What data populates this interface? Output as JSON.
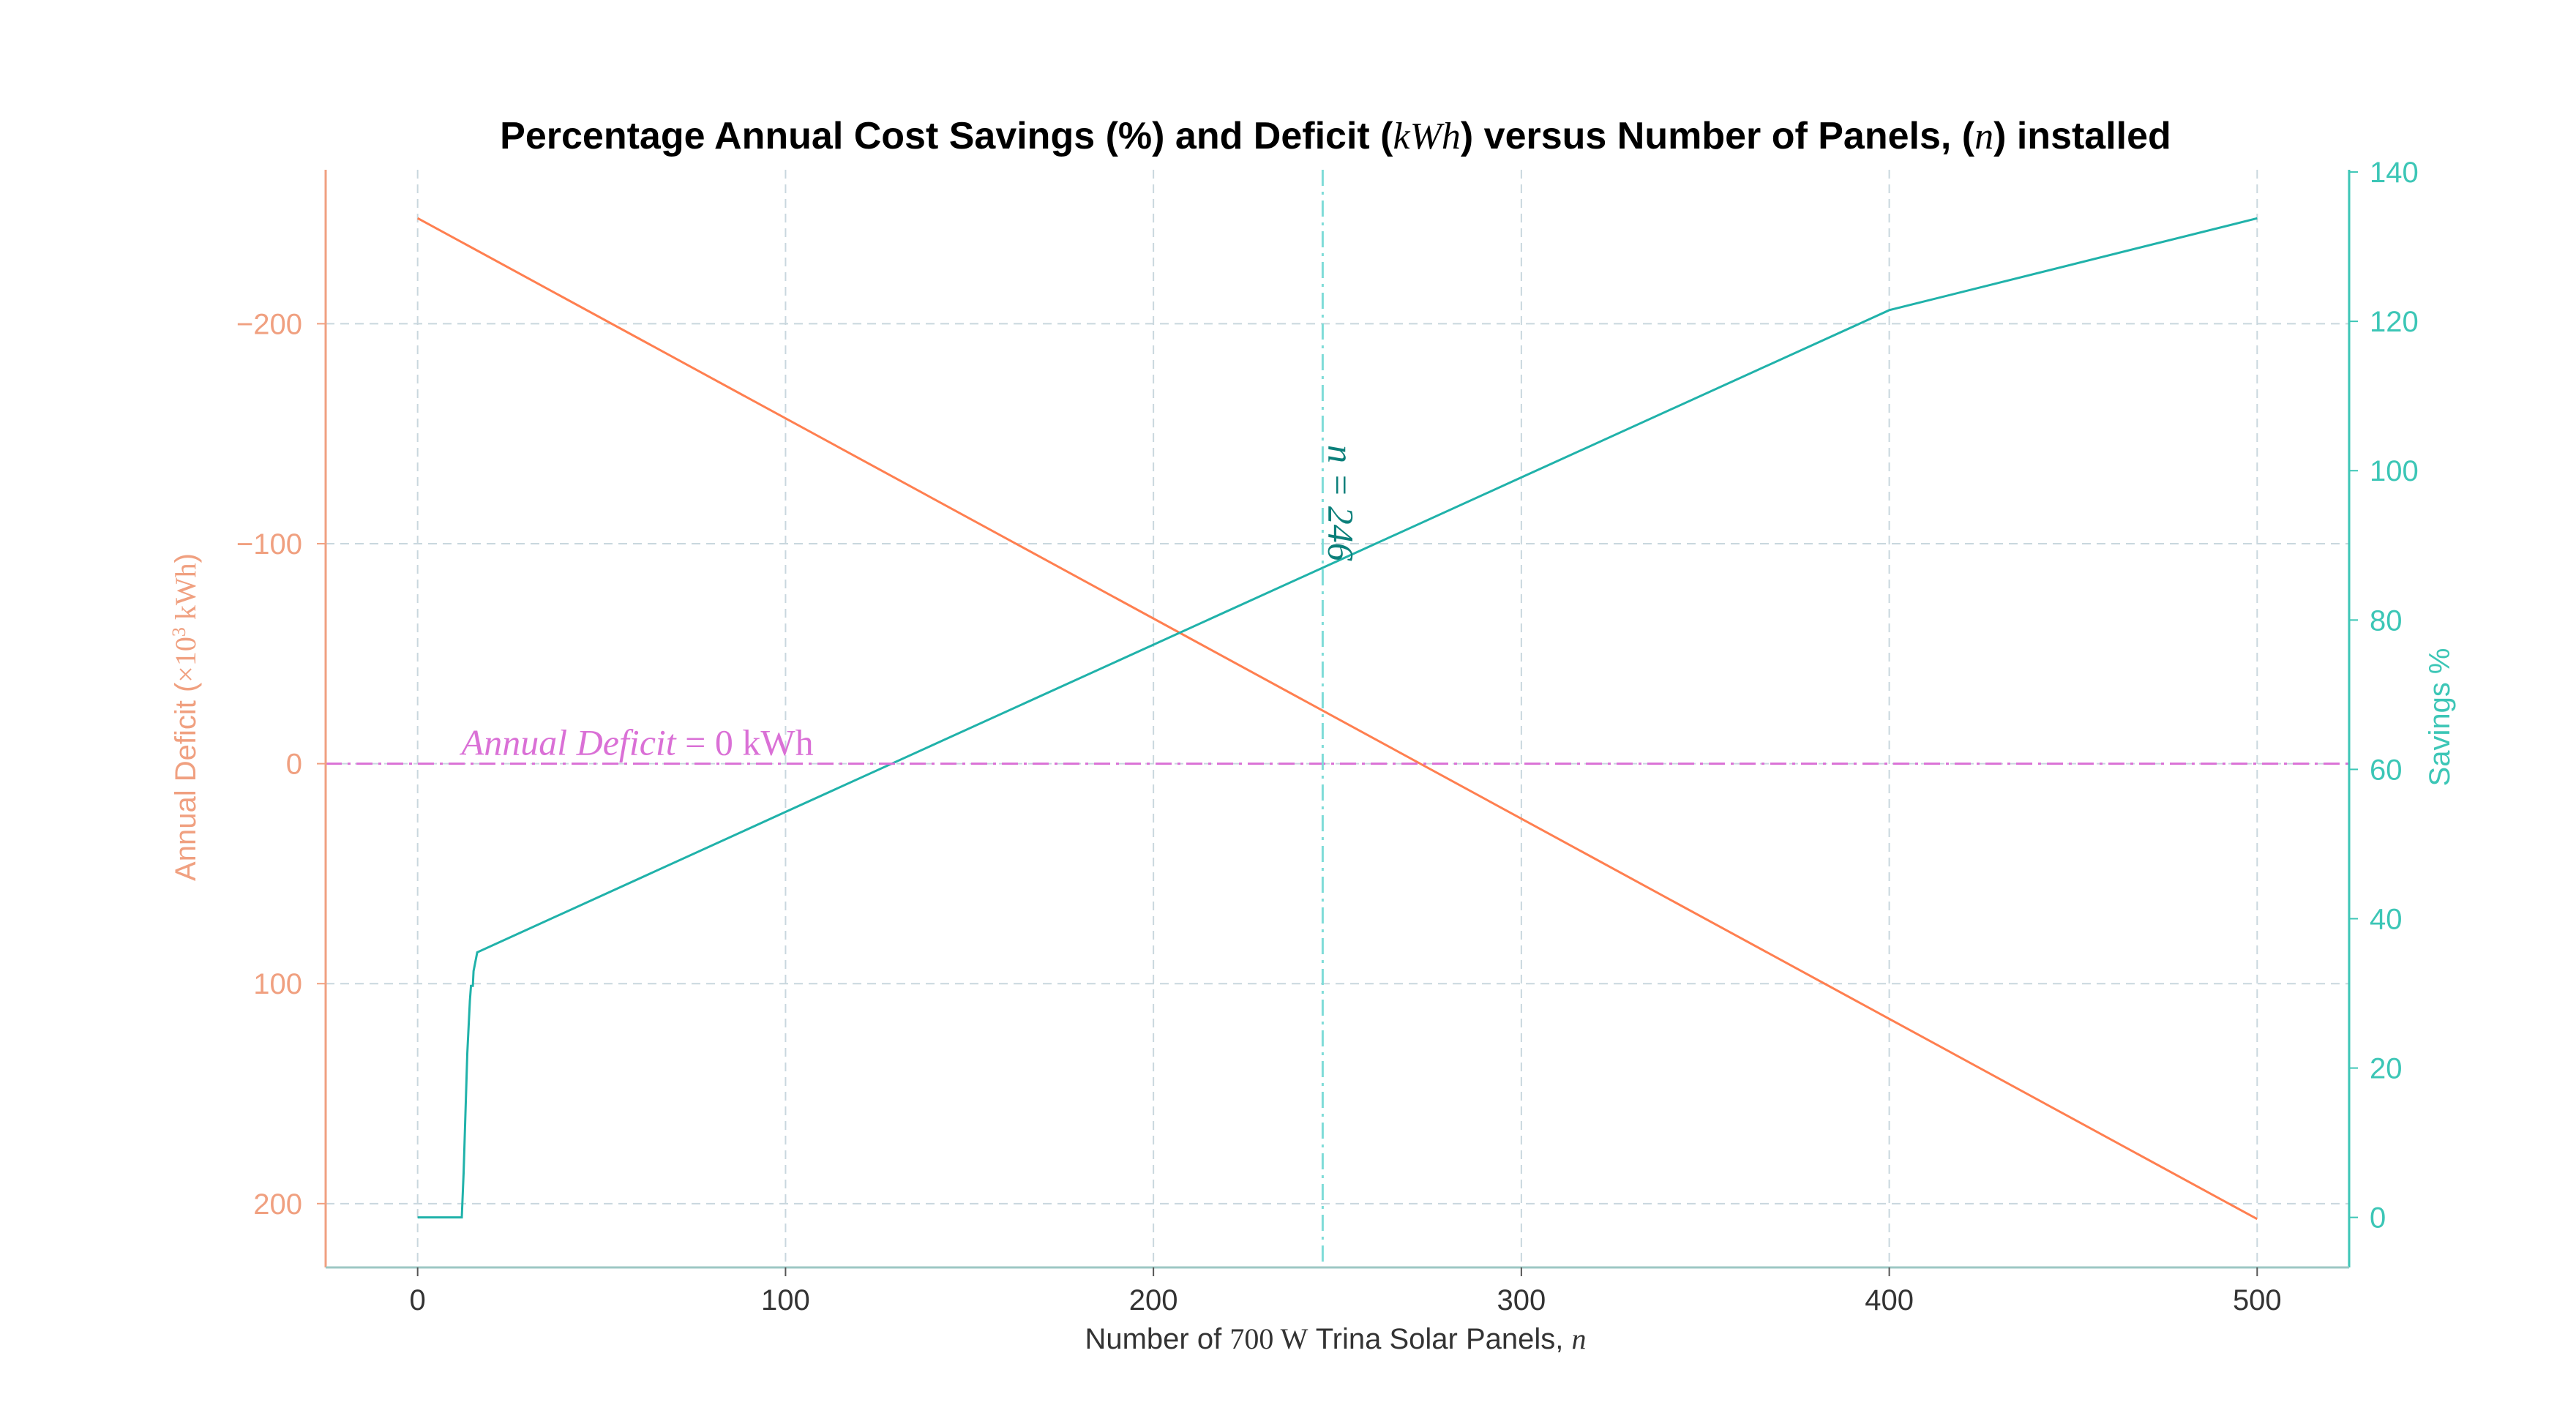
{
  "colors": {
    "deficit": "#ff7f50",
    "deficit_axis": "#f0a080",
    "savings": "#20b2aa",
    "savings_axis": "#3cc6b6",
    "zero_line": "#da70d6",
    "vline": "#7fdcd8",
    "vline_label": "#0b7f7a",
    "grid": "#c9d7de",
    "xlabel": "#333333"
  },
  "chart_data": {
    "type": "line",
    "title": {
      "prefix": "Percentage Annual Cost Savings (%) and Deficit (",
      "math1": "kWh",
      "middle": ") versus Number of Panels, (",
      "math2": "n",
      "suffix": ") installed"
    },
    "xlabel": {
      "prefix": "Number of ",
      "math_value": "700",
      "math_unit": " W",
      "middle": " Trina Solar Panels, ",
      "math_var": "n"
    },
    "ylabel_left": {
      "prefix": "Annual Deficit (",
      "math": "×10",
      "sup": "3",
      "unit": " kWh",
      "suffix": ")"
    },
    "ylabel_right": "Savings %",
    "x_range": [
      -25,
      525
    ],
    "x_ticks": [
      "0",
      "100",
      "200",
      "300",
      "400",
      "500"
    ],
    "x_tick_values": [
      0,
      100,
      200,
      300,
      400,
      500
    ],
    "left_axis": {
      "inverted": true,
      "range": [
        -270,
        229
      ],
      "tick_values": [
        -200,
        -100,
        0,
        100,
        200
      ],
      "tick_labels": [
        "−200",
        "−100",
        "0",
        "100",
        "200"
      ]
    },
    "right_axis": {
      "range": [
        -6.7,
        140.3
      ],
      "tick_values": [
        0,
        20,
        40,
        60,
        80,
        100,
        120,
        140
      ],
      "tick_labels": [
        "0",
        "20",
        "40",
        "60",
        "80",
        "100",
        "120",
        "140"
      ]
    },
    "grid": true,
    "series": [
      {
        "axis": "left",
        "x": [
          0,
          500
        ],
        "y": [
          -248,
          207
        ]
      },
      {
        "axis": "right",
        "x": [
          0,
          12,
          12.5,
          13,
          13.5,
          14,
          14.2,
          14.5,
          15,
          15.2,
          16,
          16.2,
          100,
          200,
          246,
          300,
          400,
          500
        ],
        "y": [
          0,
          0,
          6,
          14,
          22,
          27,
          29,
          31,
          31,
          33,
          35,
          35.5,
          54.3,
          76.7,
          87,
          99.1,
          121.5,
          133.8
        ]
      }
    ],
    "annotations": {
      "zero_line": {
        "y": 0,
        "label_math": "Annual Deficit",
        "label_eq": " = 0",
        "label_unit": " kWh"
      },
      "vline": {
        "x": 246,
        "label": "n = 246"
      }
    }
  }
}
